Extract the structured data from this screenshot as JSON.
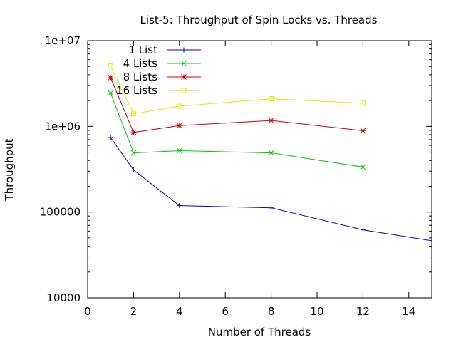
{
  "chart_data": {
    "type": "line",
    "title": "List-5: Throughput of Spin Locks vs. Threads",
    "xlabel": "Number of Threads",
    "ylabel": "Throughput",
    "xlim": [
      0,
      15
    ],
    "ylim": [
      10000,
      10000000
    ],
    "yscale": "log",
    "grid": false,
    "legend_position": "top-left",
    "x_ticks": [
      0,
      2,
      4,
      6,
      8,
      10,
      12,
      14
    ],
    "x_tick_labels": [
      "0",
      "2",
      "4",
      "6",
      "8",
      "10",
      "12",
      "14"
    ],
    "y_ticks": [
      10000,
      100000,
      1000000,
      10000000
    ],
    "y_tick_labels": [
      "10000",
      "100000",
      "1e+06",
      "1e+07"
    ],
    "series": [
      {
        "name": "1 List",
        "color": "#0000c8",
        "marker": "plus",
        "x": [
          1,
          2,
          4,
          8,
          12,
          16
        ],
        "y": [
          740000,
          310000,
          119000,
          112000,
          62000,
          42000
        ]
      },
      {
        "name": "4 Lists",
        "color": "#00c800",
        "marker": "cross",
        "x": [
          1,
          2,
          4,
          8,
          12
        ],
        "y": [
          2450000,
          490000,
          520000,
          490000,
          335000
        ]
      },
      {
        "name": "8 Lists",
        "color": "#c80000",
        "marker": "star",
        "x": [
          1,
          2,
          4,
          8,
          12
        ],
        "y": [
          3700000,
          850000,
          1020000,
          1170000,
          890000
        ]
      },
      {
        "name": "16 Lists",
        "color": "#e6e600",
        "marker": "square",
        "x": [
          1,
          2,
          4,
          8,
          12
        ],
        "y": [
          5050000,
          1400000,
          1720000,
          2100000,
          1860000
        ]
      }
    ]
  }
}
